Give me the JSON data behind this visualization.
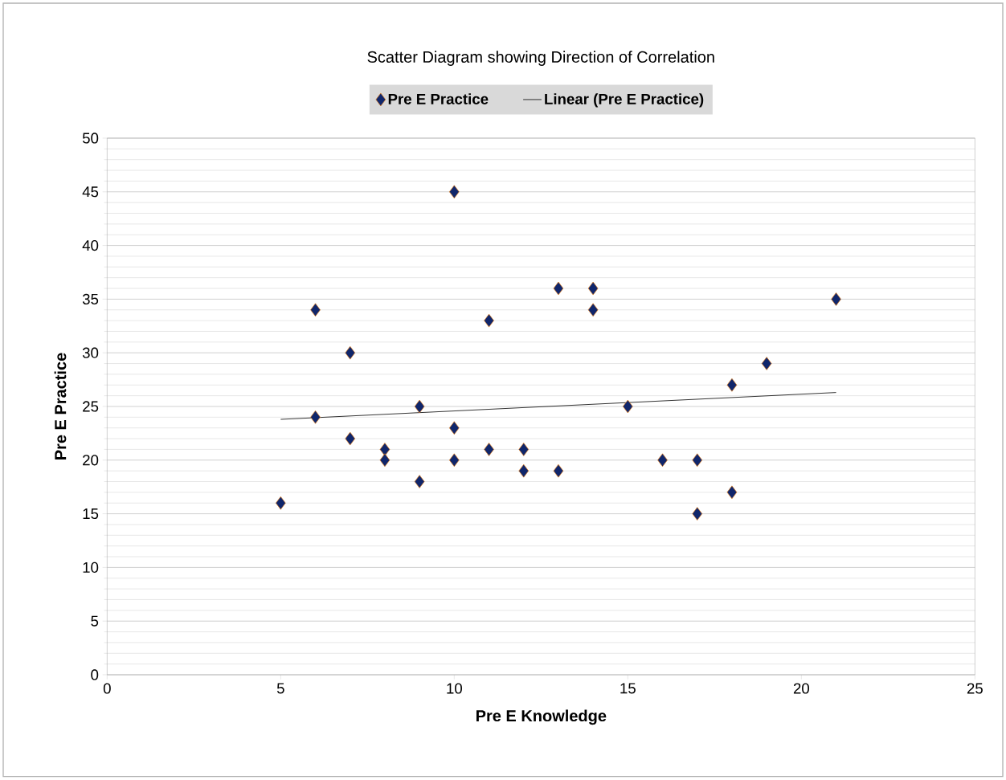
{
  "chart_data": {
    "type": "scatter",
    "title": "Scatter Diagram showing Direction of Correlation",
    "xlabel": "Pre E Knowledge",
    "ylabel": "Pre E Practice",
    "xlim": [
      0,
      25
    ],
    "xticks": [
      0,
      5,
      10,
      15,
      20,
      25
    ],
    "ylim": [
      0,
      50
    ],
    "yticks": [
      0,
      5,
      10,
      15,
      20,
      25,
      30,
      35,
      40,
      45,
      50
    ],
    "grid": "y",
    "legend": "top",
    "marker": "diamond",
    "series": [
      {
        "name": "Pre E Practice",
        "color": "#10266b",
        "x": [
          5,
          6,
          6,
          7,
          7,
          8,
          8,
          9,
          9,
          10,
          10,
          10,
          11,
          11,
          12,
          12,
          13,
          13,
          14,
          14,
          15,
          16,
          17,
          17,
          18,
          18,
          19,
          21
        ],
        "values": [
          16,
          34,
          24,
          30,
          22,
          21,
          20,
          25,
          18,
          45,
          23,
          20,
          33,
          21,
          21,
          19,
          36,
          19,
          36,
          34,
          25,
          20,
          20,
          15,
          27,
          17,
          29,
          35
        ]
      },
      {
        "name": "Linear (Pre E Practice)",
        "type": "line",
        "marker": "none",
        "color": "#000000",
        "x": [
          5,
          21
        ],
        "values": [
          23.8,
          26.3
        ]
      }
    ]
  }
}
